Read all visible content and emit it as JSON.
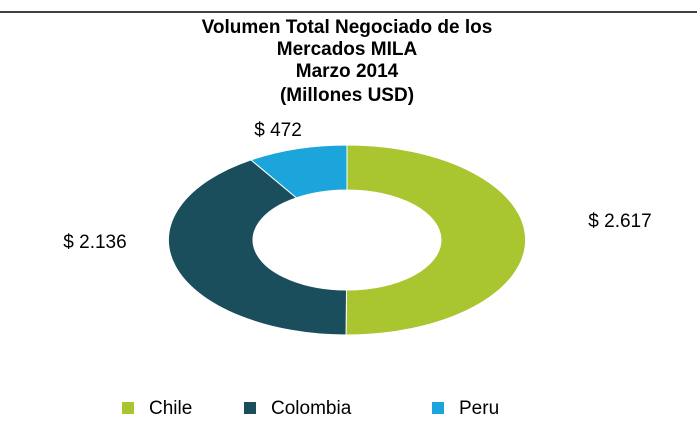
{
  "chart_data": {
    "type": "donut",
    "title": [
      "Volumen Total Negociado de los",
      "Mercados MILA",
      "Marzo 2014",
      "(Millones USD)"
    ],
    "categories": [
      "Chile",
      "Colombia",
      "Peru"
    ],
    "values": [
      2617,
      2136,
      472
    ],
    "value_labels": [
      "$ 2.617",
      "$ 2.136",
      "$ 472"
    ],
    "colors": [
      "#a9c52f",
      "#1b4e5d",
      "#1ba5da"
    ],
    "legend": "bottom"
  }
}
